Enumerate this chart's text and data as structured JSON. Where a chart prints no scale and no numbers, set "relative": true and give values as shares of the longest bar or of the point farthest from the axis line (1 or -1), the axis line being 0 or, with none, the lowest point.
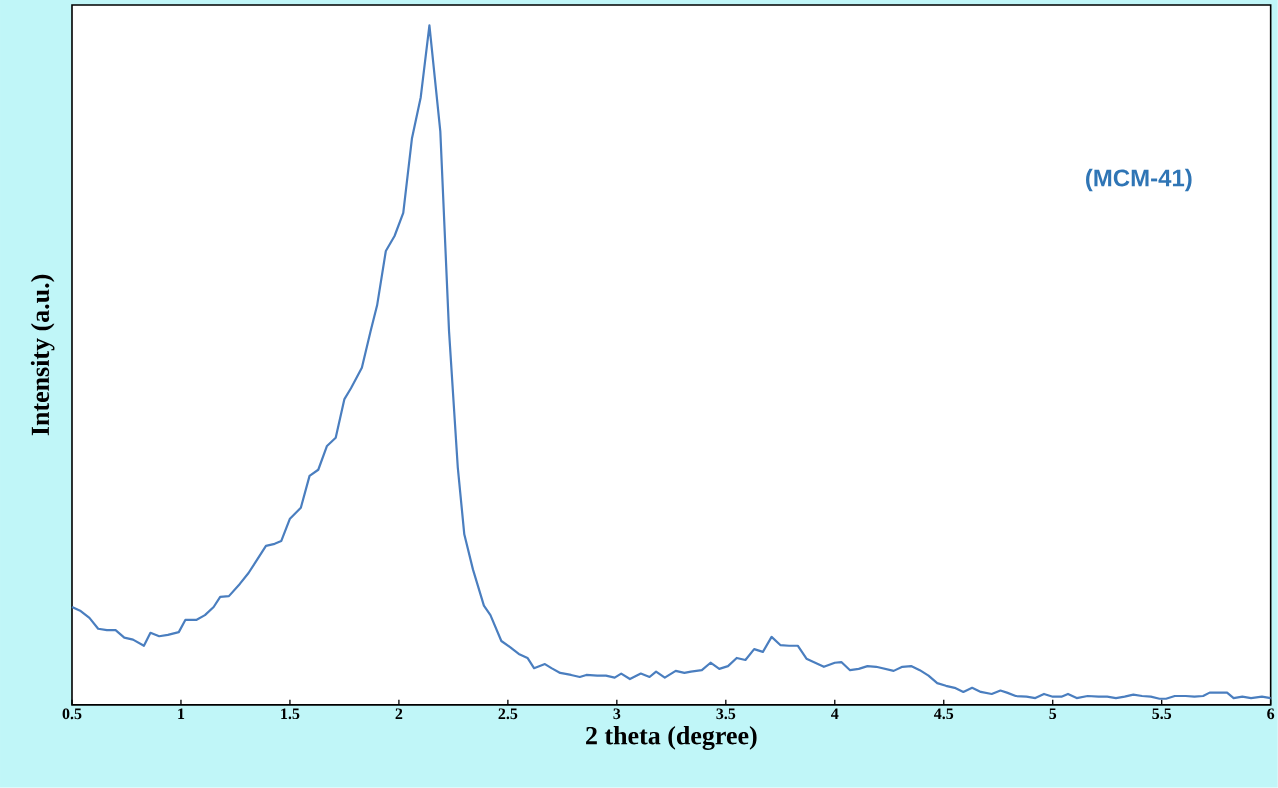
{
  "chart_data": {
    "type": "line",
    "xlabel": "2 theta (degree)",
    "ylabel": "Intensity (a.u.)",
    "annotations": [
      "(MCM-41)"
    ],
    "relative": true,
    "tick_labels": "x",
    "color": "#4a7ebf",
    "xlim": [
      0.5,
      6
    ],
    "xticks": [
      0.5,
      1,
      1.5,
      2,
      2.5,
      3,
      3.5,
      4,
      4.5,
      5,
      5.5,
      6
    ],
    "x": [
      0.5,
      0.54,
      0.58,
      0.62,
      0.66,
      0.7,
      0.74,
      0.78,
      0.83,
      0.86,
      0.9,
      0.94,
      0.99,
      1.02,
      1.07,
      1.11,
      1.15,
      1.18,
      1.22,
      1.27,
      1.31,
      1.34,
      1.39,
      1.43,
      1.46,
      1.5,
      1.55,
      1.59,
      1.63,
      1.67,
      1.71,
      1.75,
      1.78,
      1.83,
      1.87,
      1.9,
      1.94,
      1.98,
      2.02,
      2.06,
      2.1,
      2.14,
      2.19,
      2.23,
      2.27,
      2.3,
      2.34,
      2.39,
      2.42,
      2.47,
      2.51,
      2.55,
      2.59,
      2.62,
      2.67,
      2.7,
      2.74,
      2.79,
      2.83,
      2.86,
      2.91,
      2.95,
      2.99,
      3.02,
      3.06,
      3.11,
      3.15,
      3.18,
      3.22,
      3.27,
      3.31,
      3.34,
      3.39,
      3.43,
      3.47,
      3.51,
      3.55,
      3.59,
      3.63,
      3.67,
      3.71,
      3.75,
      3.79,
      3.83,
      3.87,
      3.91,
      3.95,
      4.0,
      4.03,
      4.07,
      4.11,
      4.15,
      4.19,
      4.23,
      4.27,
      4.31,
      4.35,
      4.39,
      4.43,
      4.47,
      4.51,
      4.55,
      4.59,
      4.63,
      4.67,
      4.72,
      4.76,
      4.79,
      4.83,
      4.88,
      4.92,
      4.96,
      5.0,
      5.04,
      5.07,
      5.11,
      5.16,
      5.21,
      5.25,
      5.29,
      5.33,
      5.37,
      5.41,
      5.45,
      5.49,
      5.52,
      5.56,
      5.61,
      5.65,
      5.69,
      5.72,
      5.76,
      5.8,
      5.83,
      5.87,
      5.91,
      5.96,
      6.0
    ],
    "values": [
      0.144,
      0.138,
      0.128,
      0.112,
      0.11,
      0.11,
      0.099,
      0.096,
      0.087,
      0.106,
      0.101,
      0.103,
      0.107,
      0.125,
      0.125,
      0.132,
      0.144,
      0.159,
      0.16,
      0.178,
      0.194,
      0.209,
      0.234,
      0.237,
      0.241,
      0.274,
      0.29,
      0.337,
      0.346,
      0.381,
      0.393,
      0.45,
      0.466,
      0.496,
      0.55,
      0.588,
      0.668,
      0.69,
      0.724,
      0.834,
      0.894,
      1,
      0.844,
      0.55,
      0.35,
      0.251,
      0.199,
      0.146,
      0.132,
      0.094,
      0.085,
      0.075,
      0.069,
      0.054,
      0.06,
      0.054,
      0.047,
      0.044,
      0.041,
      0.044,
      0.043,
      0.043,
      0.04,
      0.046,
      0.038,
      0.046,
      0.041,
      0.049,
      0.04,
      0.05,
      0.047,
      0.049,
      0.051,
      0.062,
      0.053,
      0.057,
      0.069,
      0.066,
      0.082,
      0.078,
      0.1,
      0.088,
      0.087,
      0.087,
      0.068,
      0.062,
      0.056,
      0.062,
      0.063,
      0.051,
      0.053,
      0.057,
      0.056,
      0.053,
      0.05,
      0.056,
      0.057,
      0.051,
      0.043,
      0.032,
      0.028,
      0.025,
      0.019,
      0.025,
      0.019,
      0.016,
      0.021,
      0.018,
      0.013,
      0.012,
      0.01,
      0.016,
      0.012,
      0.012,
      0.016,
      0.01,
      0.013,
      0.012,
      0.012,
      0.01,
      0.012,
      0.015,
      0.013,
      0.012,
      0.009,
      0.009,
      0.013,
      0.013,
      0.012,
      0.013,
      0.018,
      0.018,
      0.018,
      0.01,
      0.012,
      0.01,
      0.012,
      0.01
    ]
  }
}
